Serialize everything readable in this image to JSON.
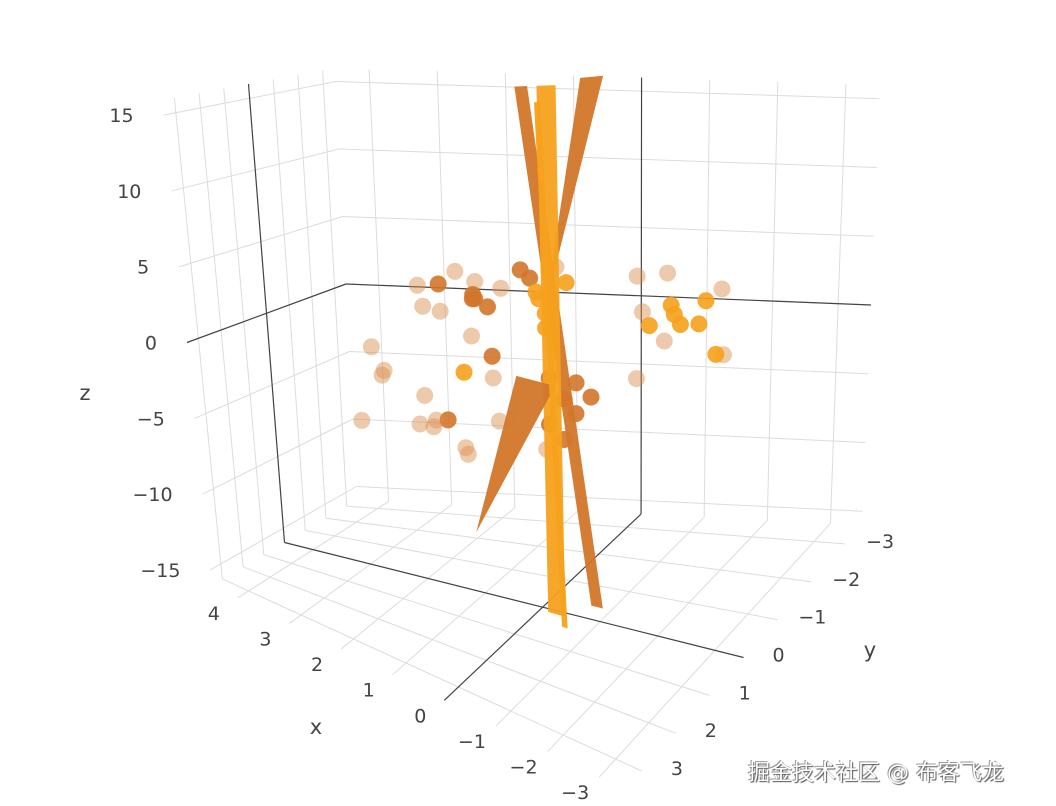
{
  "chart_data": {
    "type": "scatter3d",
    "axes": {
      "x": {
        "title": "x",
        "range": [
          -3.5,
          4.5
        ],
        "ticks": [
          -3,
          -2,
          -1,
          0,
          1,
          2,
          3,
          4
        ],
        "tick_labels": [
          "−3",
          "−2",
          "−1",
          "0",
          "1",
          "2",
          "3",
          "4"
        ]
      },
      "y": {
        "title": "y",
        "range": [
          -3.5,
          3.5
        ],
        "ticks": [
          -3,
          -2,
          -1,
          0,
          1,
          2,
          3
        ],
        "tick_labels": [
          "−3",
          "−2",
          "−1",
          "0",
          "1",
          "2",
          "3"
        ]
      },
      "z": {
        "title": "z",
        "range": [
          -16,
          16
        ],
        "ticks": [
          -15,
          -10,
          -5,
          0,
          5,
          10,
          15
        ],
        "tick_labels": [
          "−15",
          "−10",
          "−5",
          "0",
          "5",
          "10",
          "15"
        ]
      }
    },
    "grid": true,
    "colors": {
      "light": "#d98a4a",
      "dark": "#d2762a",
      "orange": "#f5a11c",
      "grid": "#dcdcdc",
      "zeroline": "#444444"
    },
    "series": [
      {
        "color": "light",
        "opacity": 0.45,
        "points": [
          [
            1.5,
            -0.3,
            3.5
          ],
          [
            1.9,
            0.2,
            2.8
          ],
          [
            1.0,
            0.1,
            3.2
          ],
          [
            1.4,
            0.5,
            1.5
          ],
          [
            2.0,
            -0.2,
            1.2
          ],
          [
            0.9,
            -0.6,
            2.4
          ],
          [
            0.6,
            2.8,
            -1.5
          ],
          [
            0.3,
            3.0,
            -2.5
          ],
          [
            0.9,
            2.4,
            -3.5
          ],
          [
            1.2,
            3.1,
            -0.5
          ],
          [
            0.0,
            2.5,
            -4.5
          ],
          [
            -0.3,
            2.0,
            -3.0
          ],
          [
            1.6,
            2.2,
            -1.0
          ],
          [
            1.5,
            3.3,
            -3.0
          ],
          [
            0.4,
            1.8,
            -5.0
          ],
          [
            -0.8,
            -1.8,
            0.5
          ],
          [
            -1.2,
            -0.8,
            3.5
          ],
          [
            -2.2,
            -1.5,
            2.5
          ],
          [
            -1.9,
            -0.3,
            0.2
          ],
          [
            -1.0,
            -2.2,
            2.8
          ],
          [
            -2.5,
            -1.0,
            -1.0
          ],
          [
            0.2,
            1.2,
            -1.5
          ],
          [
            0.7,
            0.9,
            0.5
          ],
          [
            -0.5,
            0.8,
            -5.5
          ],
          [
            1.1,
            1.5,
            -4.5
          ],
          [
            2.4,
            0.9,
            -0.8
          ],
          [
            -1.5,
            -0.2,
            -2.0
          ],
          [
            0.1,
            -0.8,
            3.8
          ]
        ]
      },
      {
        "color": "dark",
        "opacity": 0.9,
        "points": [
          [
            1.0,
            0.2,
            2.2
          ],
          [
            0.9,
            0.4,
            2.6
          ],
          [
            1.1,
            -0.1,
            2.0
          ],
          [
            0.8,
            0.1,
            1.7
          ],
          [
            -0.6,
            0.4,
            -3.0
          ],
          [
            -0.9,
            0.6,
            -3.5
          ],
          [
            -0.7,
            0.2,
            -2.2
          ],
          [
            -0.5,
            0.7,
            -4.2
          ],
          [
            -1.0,
            0.3,
            -2.8
          ],
          [
            -0.4,
            0.5,
            -1.8
          ],
          [
            -0.8,
            0.8,
            -4.8
          ],
          [
            0.3,
            0.0,
            4.0
          ],
          [
            0.1,
            0.1,
            3.6
          ],
          [
            0.5,
            2.2,
            -3.2
          ],
          [
            1.6,
            0.1,
            2.9
          ],
          [
            0.6,
            0.4,
            -1.0
          ]
        ]
      },
      {
        "color": "orange",
        "opacity": 0.9,
        "points": [
          [
            -1.6,
            -1.2,
            1.0
          ],
          [
            -1.8,
            -1.0,
            0.6
          ],
          [
            -1.4,
            -1.5,
            1.3
          ],
          [
            -2.0,
            -1.4,
            1.8
          ],
          [
            -1.3,
            -1.0,
            0.4
          ],
          [
            -2.2,
            -0.8,
            0.9
          ],
          [
            -0.1,
            0.0,
            1.5
          ],
          [
            0.1,
            -0.2,
            2.2
          ],
          [
            -0.2,
            0.2,
            0.8
          ],
          [
            0.0,
            0.1,
            2.8
          ],
          [
            -2.8,
            -0.2,
            -0.2
          ],
          [
            0.6,
            1.4,
            -1.2
          ],
          [
            -0.3,
            -0.3,
            3.2
          ]
        ]
      }
    ],
    "surfaces": [
      {
        "color": "dark",
        "vertices": [
          [
            0.3,
            0.1,
            15
          ],
          [
            0.1,
            0.1,
            15
          ],
          [
            -1.1,
            0.1,
            -15
          ],
          [
            -0.9,
            0.1,
            -15
          ]
        ]
      },
      {
        "color": "dark",
        "vertices": [
          [
            -0.4,
            -0.6,
            15.5
          ],
          [
            -0.9,
            -0.3,
            15.5
          ],
          [
            -0.2,
            0.2,
            2
          ]
        ]
      },
      {
        "color": "orange",
        "vertices": [
          [
            0.0,
            0.0,
            15
          ],
          [
            -0.3,
            0.0,
            15
          ],
          [
            -0.7,
            0.6,
            -15
          ],
          [
            -0.4,
            0.6,
            -15
          ]
        ]
      },
      {
        "color": "dark",
        "vertices": [
          [
            0.2,
            0.4,
            -2
          ],
          [
            -0.6,
            0.7,
            -2
          ],
          [
            0.4,
            1.5,
            -10
          ]
        ]
      },
      {
        "color": "orange",
        "vertices": [
          [
            -0.1,
            0.3,
            14
          ],
          [
            -0.2,
            0.3,
            14
          ],
          [
            -0.9,
            0.9,
            -15
          ],
          [
            -0.8,
            0.9,
            -15
          ]
        ]
      }
    ]
  },
  "watermark": "掘金技术社区 @ 布客飞龙"
}
